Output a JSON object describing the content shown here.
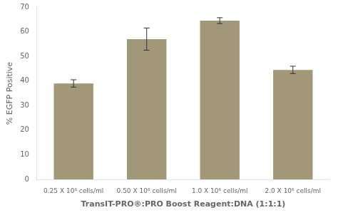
{
  "chart_data": {
    "type": "bar",
    "categories": [
      "0.25 X 10⁶ cells/ml",
      "0.50 X 10⁶ cells/ml",
      "1.0 X 10⁶ cells/ml",
      "2.0 X 10⁶ cells/ml"
    ],
    "values": [
      39.0,
      57.0,
      64.5,
      44.5
    ],
    "errors": [
      1.5,
      4.5,
      1.2,
      1.5
    ],
    "color": "#a09878",
    "ylabel": "% EGFP Positive",
    "xlabel": "TransIT-PRO®:PRO Boost Reagent:DNA (1:1:1)",
    "ylim": [
      0,
      70
    ],
    "yticks": [
      0,
      10,
      20,
      30,
      40,
      50,
      60,
      70
    ],
    "grid": false
  }
}
